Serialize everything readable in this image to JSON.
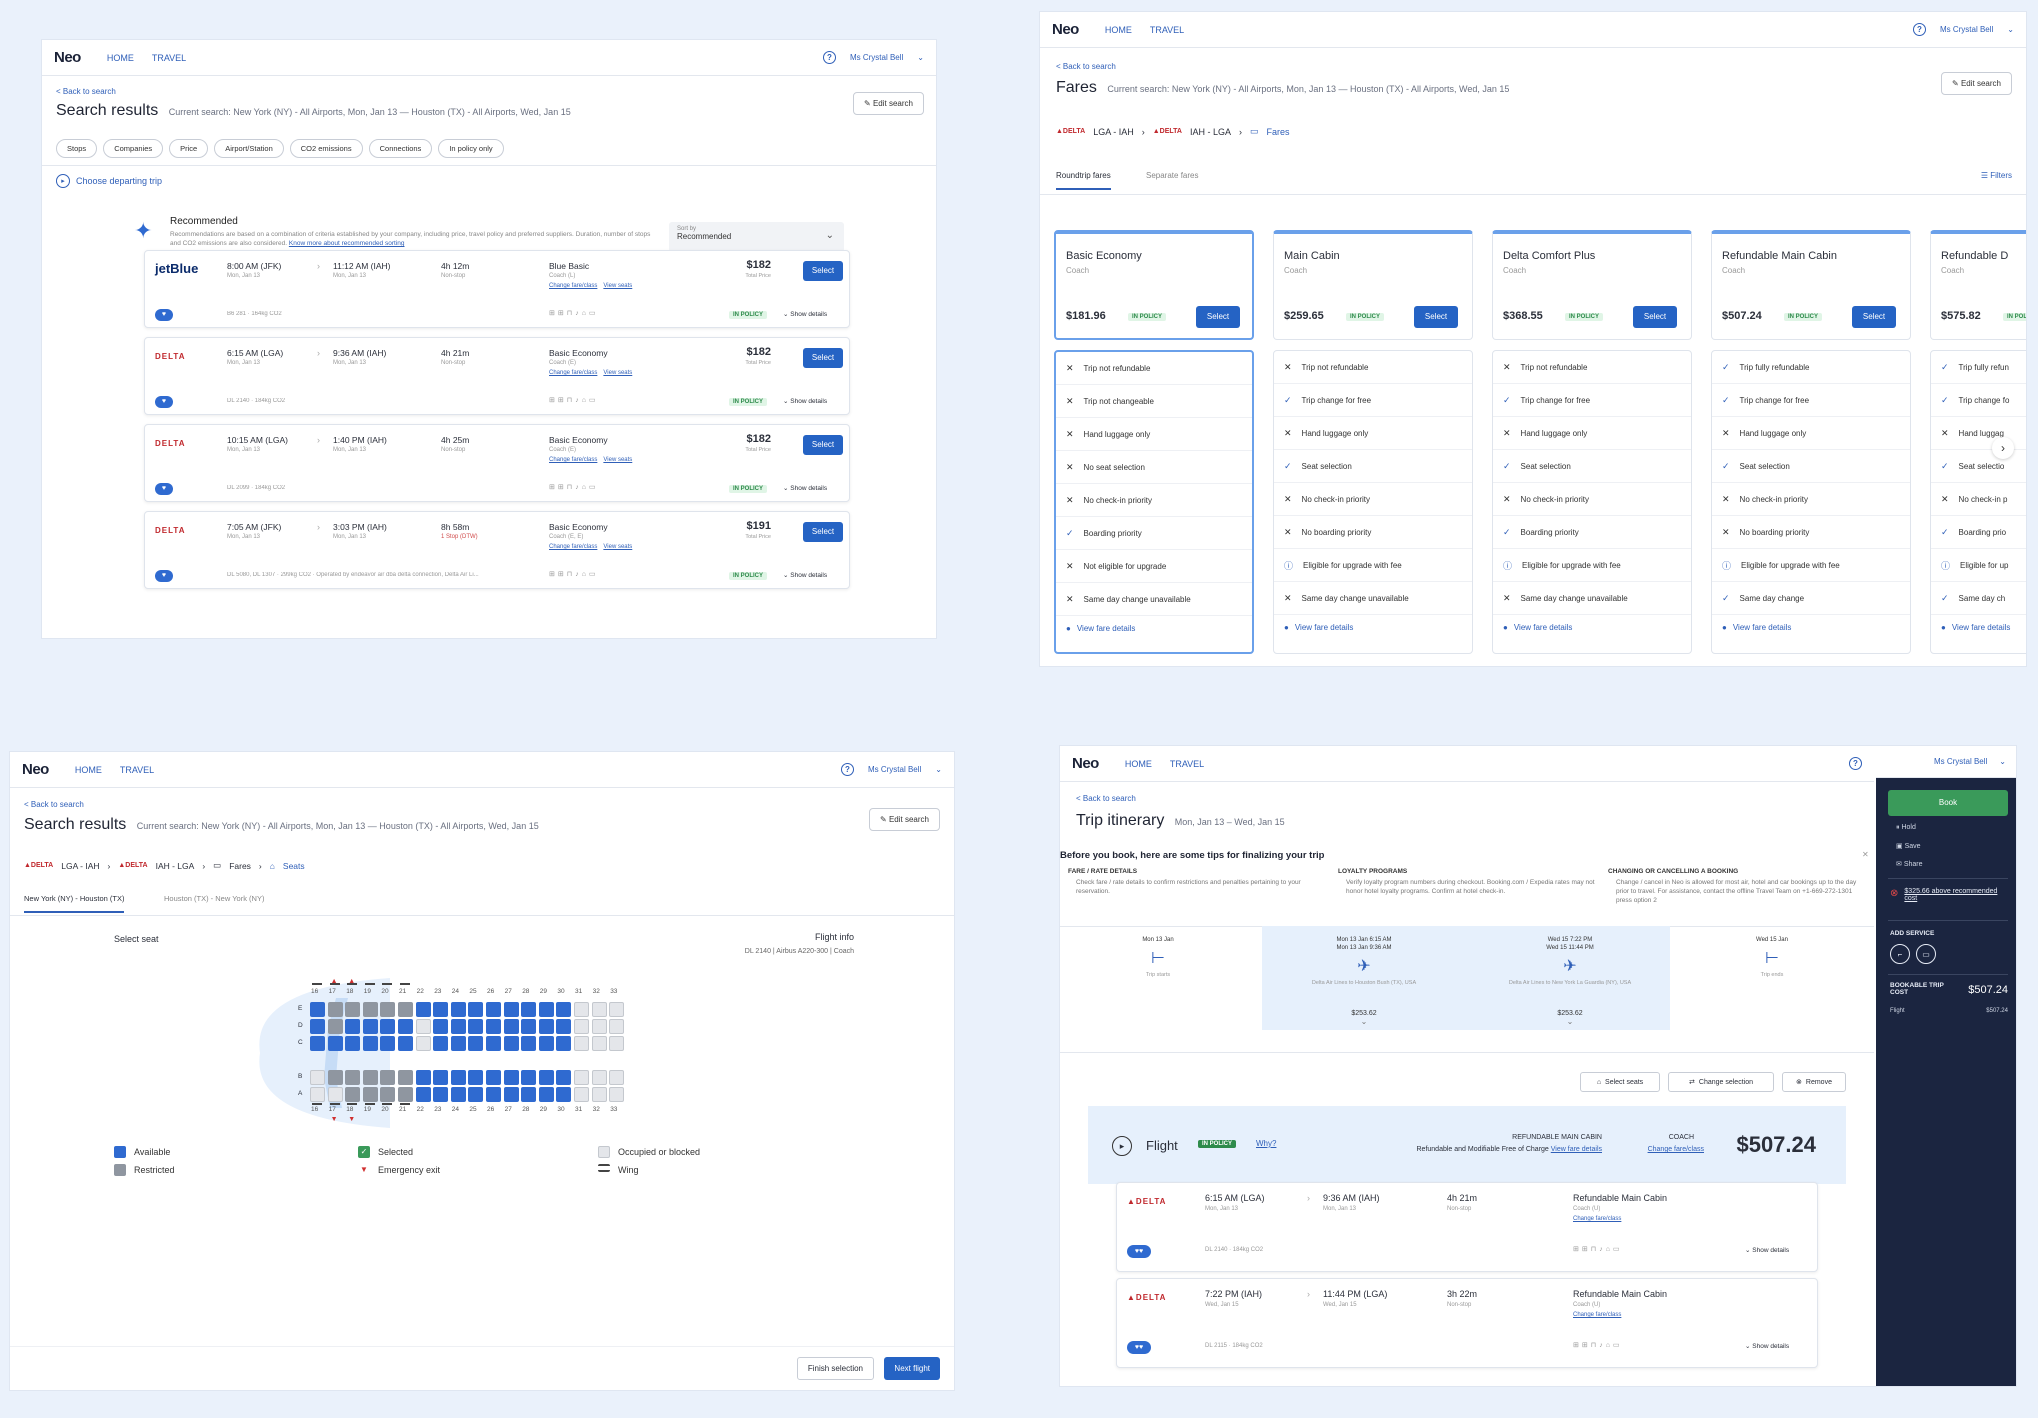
{
  "common": {
    "logo": "Neo",
    "nav_home": "HOME",
    "nav_travel": "TRAVEL",
    "user": "Ms Crystal Bell",
    "back": "< Back to search",
    "edit": "Edit search",
    "help": "?"
  },
  "p1": {
    "title": "Search results",
    "subtitle": "Current search: New York (NY) - All Airports, Mon, Jan 13 — Houston (TX) - All Airports, Wed, Jan 15",
    "chips": [
      "Stops",
      "Companies",
      "Price",
      "Airport/Station",
      "CO2 emissions",
      "Connections",
      "In policy only"
    ],
    "choose": "Choose departing trip",
    "rec_title": "Recommended",
    "rec_desc": "Recommendations are based on a combination of criteria established by your company, including price, travel policy and preferred suppliers. Duration, number of stops and CO2 emissions are also considered.",
    "rec_link": "Know more about recommended sorting",
    "sort_label": "Sort by",
    "sort_value": "Recommended",
    "flights": [
      {
        "airline": "jetBlue",
        "dep": "8:00 AM (JFK)",
        "dep_date": "Mon, Jan 13",
        "arr": "11:12 AM (IAH)",
        "arr_date": "Mon, Jan 13",
        "dur": "4h 12m",
        "stops": "Non-stop",
        "fare": "Blue Basic",
        "cabin": "Coach (L)",
        "price": "$182",
        "info": "B6 281 · 164kg CO2"
      },
      {
        "airline": "DELTA",
        "dep": "6:15 AM (LGA)",
        "dep_date": "Mon, Jan 13",
        "arr": "9:36 AM (IAH)",
        "arr_date": "Mon, Jan 13",
        "dur": "4h 21m",
        "stops": "Non-stop",
        "fare": "Basic Economy",
        "cabin": "Coach (E)",
        "price": "$182",
        "info": "DL 2140 · 184kg CO2"
      },
      {
        "airline": "DELTA",
        "dep": "10:15 AM (LGA)",
        "dep_date": "Mon, Jan 13",
        "arr": "1:40 PM (IAH)",
        "arr_date": "Mon, Jan 13",
        "dur": "4h 25m",
        "stops": "Non-stop",
        "fare": "Basic Economy",
        "cabin": "Coach (E)",
        "price": "$182",
        "info": "DL 2099 · 184kg CO2"
      },
      {
        "airline": "DELTA",
        "dep": "7:05 AM (JFK)",
        "dep_date": "Mon, Jan 13",
        "arr": "3:03 PM (IAH)",
        "arr_date": "Mon, Jan 13",
        "dur": "8h 58m",
        "stops": "1 Stop (DTW)",
        "fare": "Basic Economy",
        "cabin": "Coach (E, E)",
        "price": "$191",
        "info": "DL 5080, DL 1307 · 299kg CO2 · Operated by endeavor air dba delta connection, Delta Air Li..."
      }
    ],
    "total_price": "Total Price",
    "select": "Select",
    "in_policy": "IN POLICY",
    "show_details": "Show details",
    "change": "Change fare/class",
    "view_seats": "View seats"
  },
  "p2": {
    "title": "Fares",
    "subtitle": "Current search: New York (NY) - All Airports, Mon, Jan 13 — Houston (TX) - All Airports, Wed, Jan 15",
    "crumbs": [
      "LGA - IAH",
      "IAH - LGA",
      "Fares"
    ],
    "tabs": [
      "Roundtrip fares",
      "Separate fares"
    ],
    "filters": "Filters",
    "cards": [
      {
        "name": "Basic Economy",
        "cls": "Coach",
        "price": "$181.96"
      },
      {
        "name": "Main Cabin",
        "cls": "Coach",
        "price": "$259.65"
      },
      {
        "name": "Delta Comfort Plus",
        "cls": "Coach",
        "price": "$368.55"
      },
      {
        "name": "Refundable Main Cabin",
        "cls": "Coach",
        "price": "$507.24"
      },
      {
        "name": "Refundable D",
        "cls": "Coach",
        "price": "$575.82"
      }
    ],
    "features": [
      [
        [
          "x",
          "Trip not refundable"
        ],
        [
          "x",
          "Trip not changeable"
        ],
        [
          "x",
          "Hand luggage only"
        ],
        [
          "x",
          "No seat selection"
        ],
        [
          "x",
          "No check-in priority"
        ],
        [
          "v",
          "Boarding priority"
        ],
        [
          "x",
          "Not eligible for upgrade"
        ],
        [
          "x",
          "Same day change unavailable"
        ]
      ],
      [
        [
          "x",
          "Trip not refundable"
        ],
        [
          "v",
          "Trip change for free"
        ],
        [
          "x",
          "Hand luggage only"
        ],
        [
          "v",
          "Seat selection"
        ],
        [
          "x",
          "No check-in priority"
        ],
        [
          "x",
          "No boarding priority"
        ],
        [
          "i",
          "Eligible for upgrade with fee"
        ],
        [
          "x",
          "Same day change unavailable"
        ]
      ],
      [
        [
          "x",
          "Trip not refundable"
        ],
        [
          "v",
          "Trip change for free"
        ],
        [
          "x",
          "Hand luggage only"
        ],
        [
          "v",
          "Seat selection"
        ],
        [
          "x",
          "No check-in priority"
        ],
        [
          "v",
          "Boarding priority"
        ],
        [
          "i",
          "Eligible for upgrade with fee"
        ],
        [
          "x",
          "Same day change unavailable"
        ]
      ],
      [
        [
          "v",
          "Trip fully refundable"
        ],
        [
          "v",
          "Trip change for free"
        ],
        [
          "x",
          "Hand luggage only"
        ],
        [
          "v",
          "Seat selection"
        ],
        [
          "x",
          "No check-in priority"
        ],
        [
          "x",
          "No boarding priority"
        ],
        [
          "i",
          "Eligible for upgrade with fee"
        ],
        [
          "v",
          "Same day change"
        ]
      ],
      [
        [
          "v",
          "Trip fully refun"
        ],
        [
          "v",
          "Trip change fo"
        ],
        [
          "x",
          "Hand luggag"
        ],
        [
          "v",
          "Seat selectio"
        ],
        [
          "x",
          "No check-in p"
        ],
        [
          "v",
          "Boarding prio"
        ],
        [
          "i",
          "Eligible for up"
        ],
        [
          "v",
          "Same day ch"
        ]
      ]
    ],
    "view_fare": "View fare details"
  },
  "p3": {
    "title": "Search results",
    "subtitle": "Current search: New York (NY) - All Airports, Mon, Jan 13 — Houston (TX) - All Airports, Wed, Jan 15",
    "crumbs": [
      "LGA - IAH",
      "IAH - LGA",
      "Fares",
      "Seats"
    ],
    "tabs": [
      "New York (NY) - Houston (TX)",
      "Houston (TX) - New York (NY)"
    ],
    "select_seat": "Select seat",
    "flight_info": "Flight info",
    "flight_detail": "DL 2140 | Airbus A220-300 | Coach",
    "cols": [
      "16",
      "17",
      "18",
      "19",
      "20",
      "21",
      "22",
      "23",
      "24",
      "25",
      "26",
      "27",
      "28",
      "29",
      "30",
      "31",
      "32",
      "33"
    ],
    "rows_top": [
      "E",
      "D",
      "C"
    ],
    "rows_bottom": [
      "B",
      "A"
    ],
    "legend": [
      "Available",
      "Selected",
      "Occupied or blocked",
      "Restricted",
      "Emergency exit",
      "Wing"
    ],
    "finish": "Finish selection",
    "next": "Next flight"
  },
  "p4": {
    "title": "Trip itinerary",
    "dates": "Mon, Jan 13 – Wed, Jan 15",
    "tips_title": "Before you book, here are some tips for finalizing your trip",
    "tips": [
      {
        "h": "FARE / RATE DETAILS",
        "t": "Check fare / rate details to confirm restrictions and penalties pertaining to your reservation."
      },
      {
        "h": "LOYALTY PROGRAMS",
        "t": "Verify loyalty program numbers during checkout. Booking.com / Expedia rates may not honor hotel loyalty programs. Confirm at hotel check-in."
      },
      {
        "h": "CHANGING OR CANCELLING A BOOKING",
        "t": "Change / cancel in Neo is allowed for most air, hotel and car bookings up to the day prior to travel. For assistance, contact the offline Travel Team on +1-669-272-1301 press option 2"
      }
    ],
    "timeline": [
      {
        "d": "Mon 13 Jan",
        "l": "Trip starts"
      },
      {
        "d": "Mon 13 Jan 6:15 AM\nMon 13 Jan 9:36 AM",
        "l": "Delta Air Lines to Houston Bush (TX), USA",
        "p": "$253.62"
      },
      {
        "d": "Wed 15 7:22 PM\nWed 15 11:44 PM",
        "l": "Delta Air Lines to New York La Guardia (NY), USA",
        "p": "$253.62"
      },
      {
        "d": "Wed 15 Jan",
        "l": "Trip ends"
      }
    ],
    "actions": [
      "Select seats",
      "Change selection",
      "Remove"
    ],
    "flight_label": "Flight",
    "why": "Why?",
    "fare_name": "REFUNDABLE MAIN CABIN",
    "fare_desc": "Refundable and Modifiable Free of Charge",
    "view_fare": "View fare details",
    "coach": "COACH",
    "change": "Change fare/class",
    "total": "$507.24",
    "legs": [
      {
        "dep": "6:15 AM (LGA)",
        "dep_date": "Mon, Jan 13",
        "arr": "9:36 AM (IAH)",
        "arr_date": "Mon, Jan 13",
        "dur": "4h 21m",
        "stops": "Non-stop",
        "fare": "Refundable Main Cabin",
        "cabin": "Coach (U)",
        "info": "DL 2140 · 184kg CO2"
      },
      {
        "dep": "7:22 PM (IAH)",
        "dep_date": "Wed, Jan 15",
        "arr": "11:44 PM (LGA)",
        "arr_date": "Wed, Jan 15",
        "dur": "3h 22m",
        "stops": "Non-stop",
        "fare": "Refundable Main Cabin",
        "cabin": "Coach (U)",
        "info": "DL 2115 · 184kg CO2"
      }
    ],
    "side": {
      "book": "Book",
      "hold": "Hold",
      "save": "Save",
      "share": "Share",
      "warn": "$325.66 above recommended cost",
      "add": "ADD SERVICE",
      "bookable": "BOOKABLE TRIP COST",
      "bookable_val": "$507.24",
      "flight": "Flight",
      "flight_val": "$507.24"
    }
  }
}
